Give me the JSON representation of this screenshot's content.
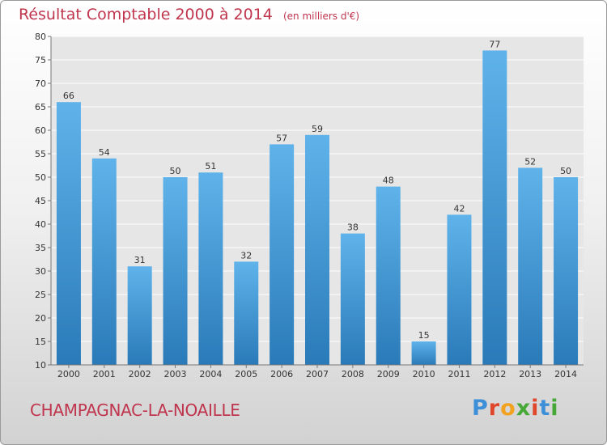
{
  "chart_data": {
    "type": "bar",
    "title": "Résultat Comptable 2000 à 2014",
    "unit": "(en milliers d'€)",
    "categories": [
      "2000",
      "2001",
      "2002",
      "2003",
      "2004",
      "2005",
      "2006",
      "2007",
      "2008",
      "2009",
      "2010",
      "2011",
      "2012",
      "2013",
      "2014"
    ],
    "values": [
      66,
      54,
      31,
      50,
      51,
      32,
      57,
      59,
      38,
      48,
      15,
      42,
      77,
      52,
      50
    ],
    "xlabel": "",
    "ylabel": "",
    "ylim": [
      10,
      80
    ],
    "yticks": [
      10,
      15,
      20,
      25,
      30,
      35,
      40,
      45,
      50,
      55,
      60,
      65,
      70,
      75,
      80
    ],
    "grid": true,
    "legend": "none",
    "data_labels": true,
    "colors": {
      "bar_top": "#5fb3ea",
      "bar_bottom": "#2a7ab9",
      "title": "#c0354e",
      "text": "#333333"
    }
  },
  "footer": {
    "commune": "CHAMPAGNAC-LA-NOAILLE",
    "brand": "Proxiti",
    "brand_colors": [
      "#3d8fd8",
      "#e0462a",
      "#f2a21f",
      "#46a836",
      "#e0462a",
      "#3d8fd8",
      "#46a836"
    ]
  }
}
